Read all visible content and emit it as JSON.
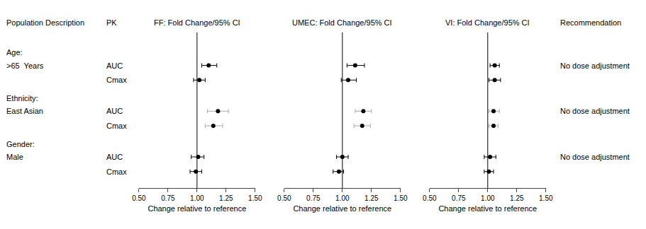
{
  "chart_data": {
    "type": "forest",
    "column_headers": [
      "Population Description",
      "PK",
      "Recommendation"
    ],
    "panel_titles": [
      "FF: Fold Change/95% CI",
      "UMEC: Fold Change/95% CI",
      "VI: Fold Change/95% CI"
    ],
    "xlabel": "Change relative to reference",
    "xlim": [
      0.5,
      1.5
    ],
    "xticks": [
      {
        "value": 0.5,
        "label": "0.50"
      },
      0.75,
      {
        "value": 1.0,
        "label": "1.00"
      },
      1.25,
      {
        "value": 1.5,
        "label": "1.50"
      }
    ],
    "reference_x": 1.0,
    "color": "#000000",
    "marker": "circle",
    "grid": false,
    "tick_labels": "x",
    "groups": [
      {
        "label1": "Age:",
        "label2": ">65  Years",
        "recommendation": "No dose adjustment",
        "color": "#000000",
        "rows": [
          {
            "pk": "AUC",
            "estimates": [
              {
                "value": 1.1,
                "lo": 1.04,
                "hi": 1.17
              },
              {
                "value": 1.11,
                "lo": 1.04,
                "hi": 1.19
              },
              {
                "value": 1.06,
                "lo": 1.02,
                "hi": 1.1
              }
            ]
          },
          {
            "pk": "Cmax",
            "estimates": [
              {
                "value": 1.02,
                "lo": 0.97,
                "hi": 1.07
              },
              {
                "value": 1.05,
                "lo": 0.99,
                "hi": 1.12
              },
              {
                "value": 1.06,
                "lo": 1.01,
                "hi": 1.11
              }
            ]
          }
        ]
      },
      {
        "label1": "Ethnicity:",
        "label2": "East Asian",
        "recommendation": "No dose adjustment",
        "color": "#aaaaaa",
        "rows": [
          {
            "pk": "AUC",
            "estimates": [
              {
                "value": 1.18,
                "lo": 1.09,
                "hi": 1.27
              },
              {
                "value": 1.18,
                "lo": 1.11,
                "hi": 1.25
              },
              {
                "value": 1.05,
                "lo": 1.01,
                "hi": 1.1
              }
            ]
          },
          {
            "pk": "Cmax",
            "estimates": [
              {
                "value": 1.14,
                "lo": 1.07,
                "hi": 1.22
              },
              {
                "value": 1.17,
                "lo": 1.1,
                "hi": 1.24
              },
              {
                "value": 1.05,
                "lo": 1.01,
                "hi": 1.09
              }
            ]
          }
        ]
      },
      {
        "label1": "Gender:",
        "label2": "Male",
        "recommendation": "No dose adjustment",
        "color": "#000000",
        "rows": [
          {
            "pk": "AUC",
            "estimates": [
              {
                "value": 1.01,
                "lo": 0.95,
                "hi": 1.06
              },
              {
                "value": 1.0,
                "lo": 0.95,
                "hi": 1.05
              },
              {
                "value": 1.02,
                "lo": 0.97,
                "hi": 1.07
              }
            ]
          },
          {
            "pk": "Cmax",
            "estimates": [
              {
                "value": 0.99,
                "lo": 0.94,
                "hi": 1.04
              },
              {
                "value": 0.97,
                "lo": 0.92,
                "hi": 1.01
              },
              {
                "value": 1.01,
                "lo": 0.97,
                "hi": 1.05
              }
            ]
          }
        ]
      }
    ]
  }
}
